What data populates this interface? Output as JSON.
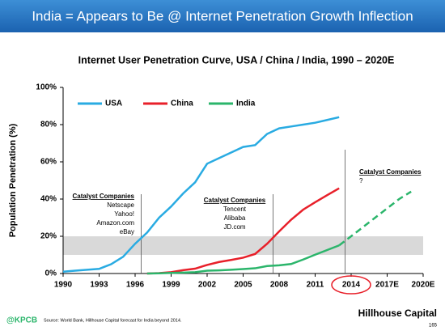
{
  "header": {
    "title": "India = Appears to Be @ Internet Penetration Growth Inflection"
  },
  "chart_data": {
    "type": "line",
    "title": "Internet User Penetration Curve, USA / China / India, 1990 – 2020E",
    "y_label": "Population Penetration (%)",
    "x": [
      1990,
      1991,
      1992,
      1993,
      1994,
      1995,
      1996,
      1997,
      1998,
      1999,
      2000,
      2001,
      2002,
      2003,
      2004,
      2005,
      2006,
      2007,
      2008,
      2009,
      2010,
      2011,
      2012,
      2013,
      2014,
      2015,
      2016,
      2017,
      2018,
      2019
    ],
    "xlim": [
      1990,
      2020
    ],
    "xticks": [
      1990,
      1993,
      1996,
      1999,
      2002,
      2005,
      2008,
      2011,
      2014,
      {
        "value": 2017,
        "label": "2017E"
      },
      {
        "value": 2020,
        "label": "2020E"
      }
    ],
    "ylim": [
      0,
      100
    ],
    "yticks": [
      {
        "value": 0,
        "label": "0%"
      },
      {
        "value": 20,
        "label": "20%"
      },
      {
        "value": 40,
        "label": "40%"
      },
      {
        "value": 60,
        "label": "60%"
      },
      {
        "value": 80,
        "label": "80%"
      },
      {
        "value": 100,
        "label": "100%"
      }
    ],
    "series": [
      {
        "name": "USA",
        "color": "#29abe2",
        "values": [
          1,
          1.5,
          2,
          2.5,
          5,
          9,
          16,
          22,
          30,
          36,
          43,
          49,
          59,
          62,
          65,
          68,
          69,
          75,
          78,
          79,
          80,
          81,
          82.5,
          84,
          null,
          null,
          null,
          null,
          null,
          null
        ]
      },
      {
        "name": "China",
        "color": "#e8202a",
        "values": [
          null,
          null,
          null,
          null,
          null,
          null,
          null,
          0,
          0.2,
          0.7,
          1.8,
          2.6,
          4.6,
          6.2,
          7.3,
          8.5,
          10.5,
          16,
          22.6,
          28.9,
          34.3,
          38.3,
          42.1,
          45.8,
          null,
          null,
          null,
          null,
          null,
          null
        ]
      },
      {
        "name": "India",
        "color": "#2bb56b",
        "forecast_from": 2013,
        "values": [
          null,
          null,
          null,
          null,
          null,
          null,
          null,
          0,
          0.1,
          0.3,
          0.5,
          0.7,
          1.5,
          1.7,
          2,
          2.4,
          2.8,
          4,
          4.4,
          5.1,
          7.5,
          10.1,
          12.6,
          15.1,
          20,
          25,
          30,
          35,
          40,
          44
        ]
      }
    ],
    "shaded_band": [
      10,
      20
    ],
    "annotations": [
      {
        "x": 1996.5,
        "title": "Catalyst Companies",
        "lines": [
          "Netscape",
          "Yahoo!",
          "Amazon.com",
          "eBay"
        ]
      },
      {
        "x": 2007.5,
        "title": "Catalyst Companies",
        "lines": [
          "Tencent",
          "Alibaba",
          "JD.com"
        ]
      },
      {
        "x": 2013.5,
        "title": "Catalyst Companies",
        "lines": [
          "?"
        ]
      }
    ]
  },
  "footer": {
    "logo": "@KPCB",
    "source": "Source: World Bank, Hillhouse Capital forecast for India beyond 2014.",
    "company": "Hillhouse Capital",
    "page": "165"
  }
}
